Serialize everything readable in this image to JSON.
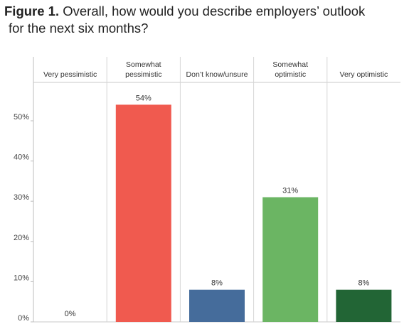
{
  "title": {
    "label": "Figure 1.",
    "text_line1": "Overall, how would you describe employers’ outlook",
    "text_line2": "for the next six months?"
  },
  "chart_data": {
    "type": "bar",
    "categories": [
      [
        "Very pessimistic"
      ],
      [
        "Somewhat",
        "pessimistic"
      ],
      [
        "Don’t know/unsure"
      ],
      [
        "Somewhat",
        "optimistic"
      ],
      [
        "Very optimistic"
      ]
    ],
    "values": [
      0,
      54,
      8,
      31,
      8
    ],
    "data_labels": [
      "0%",
      "54%",
      "8%",
      "31%",
      "8%"
    ],
    "colors": [
      "#f05a4f",
      "#f05a4f",
      "#456c9b",
      "#6bb563",
      "#226535"
    ],
    "ylim": [
      0,
      58
    ],
    "yticks": [
      0,
      10,
      20,
      30,
      40,
      50
    ],
    "ytick_labels": [
      "0%",
      "10%",
      "20%",
      "30%",
      "40%",
      "50%"
    ],
    "grid": false,
    "category_axis_position": "top"
  }
}
